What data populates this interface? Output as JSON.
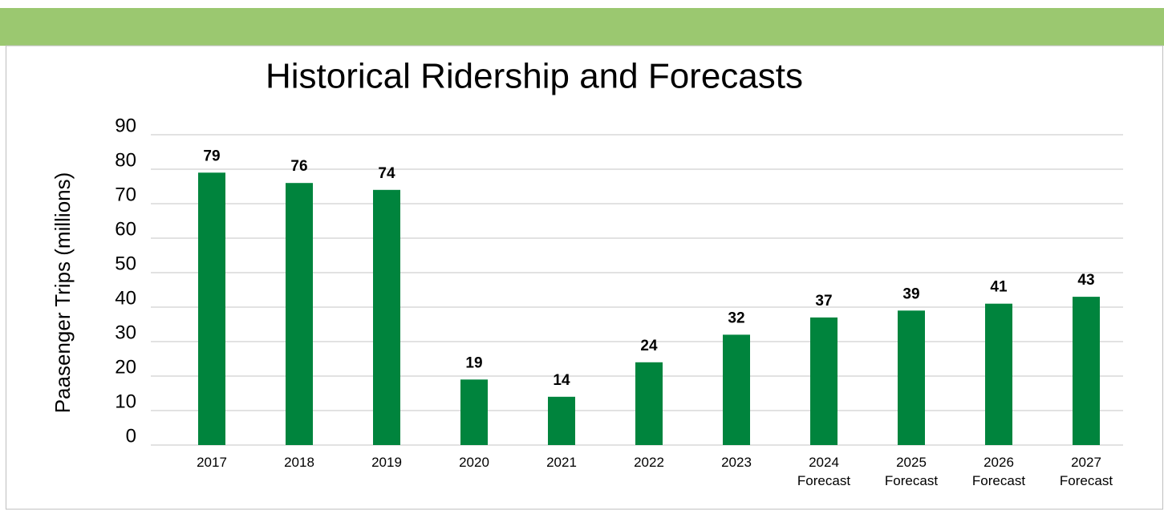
{
  "chart_data": {
    "type": "bar",
    "title": "Historical Ridership and Forecasts",
    "y_label": "Paasenger Trips (millions)",
    "categories": [
      "2017",
      "2018",
      "2019",
      "2020",
      "2021",
      "2022",
      "2023",
      "2024 Forecast",
      "2025 Forecast",
      "2026 Forecast",
      "2027 Forecast"
    ],
    "values": [
      79,
      76,
      74,
      19,
      14,
      24,
      32,
      37,
      39,
      41,
      43
    ],
    "color": "#00843d",
    "ylim": [
      0,
      90
    ],
    "yticks": [
      0,
      10,
      20,
      30,
      40,
      50,
      60,
      70,
      80,
      90
    ],
    "grid": true
  }
}
